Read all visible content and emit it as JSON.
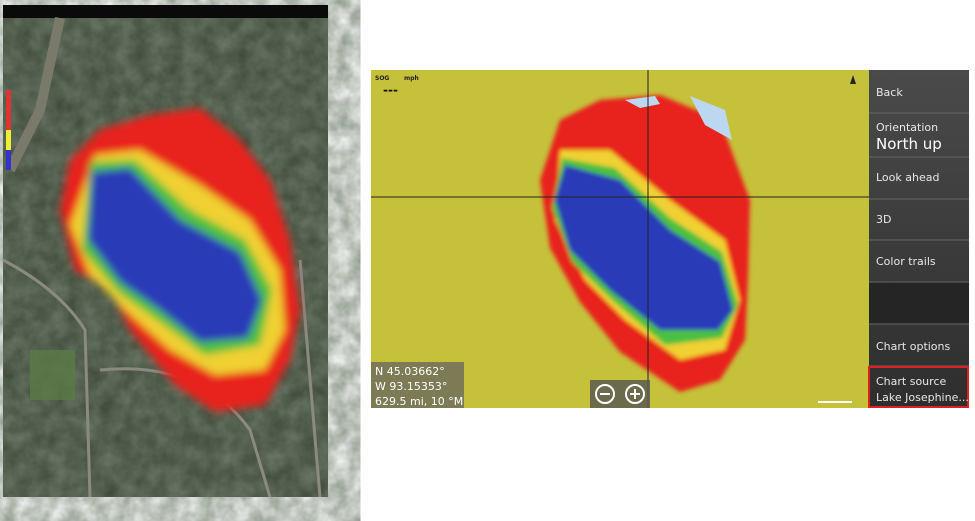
{
  "map_overlay": {
    "sog_label": "SOG",
    "sog_unit": "mph",
    "sog_value": "---",
    "latitude": "N  45.03662°",
    "longitude": "W  93.15353°",
    "range": "629.5 mi, 10 °M"
  },
  "menu": {
    "back": "Back",
    "orientation": {
      "label": "Orientation",
      "value": "North up"
    },
    "look_ahead": "Look ahead",
    "three_d": "3D",
    "color_trails": "Color trails",
    "chart_options": "Chart options",
    "chart_source": {
      "label": "Chart source",
      "value": "Lake Josephine..."
    }
  }
}
